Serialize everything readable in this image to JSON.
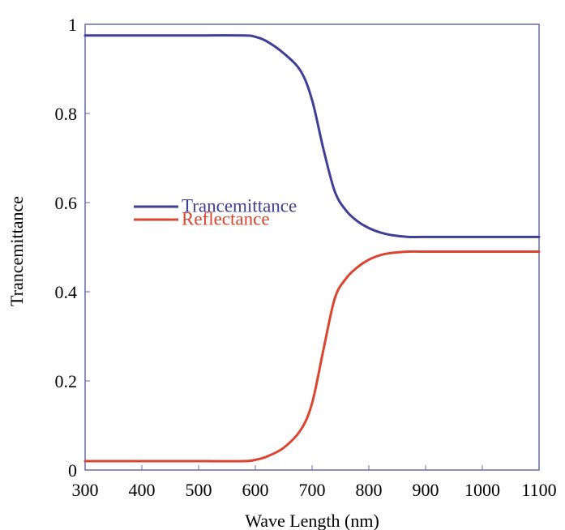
{
  "chart_data": {
    "type": "line",
    "title": "",
    "xlabel": "Wave Length (nm)",
    "ylabel": "Trancemittance",
    "xlim": [
      300,
      1100
    ],
    "ylim": [
      0,
      1
    ],
    "grid": false,
    "legend_position": "center-left",
    "x_ticks": [
      "300",
      "400",
      "500",
      "600",
      "700",
      "800",
      "900",
      "1000",
      "1100"
    ],
    "y_ticks": [
      "0",
      "0.2",
      "0.4",
      "0.6",
      "0.8",
      "1"
    ],
    "series": [
      {
        "name": "Trancemittance",
        "color": "#3f3f97",
        "x": [
          300,
          400,
          500,
          580,
          600,
          620,
          650,
          680,
          700,
          720,
          740,
          760,
          780,
          800,
          820,
          840,
          870,
          900,
          1000,
          1100
        ],
        "y": [
          0.975,
          0.975,
          0.975,
          0.975,
          0.972,
          0.962,
          0.935,
          0.895,
          0.83,
          0.72,
          0.625,
          0.582,
          0.558,
          0.543,
          0.533,
          0.527,
          0.523,
          0.523,
          0.523,
          0.523
        ]
      },
      {
        "name": "Reflectance",
        "color": "#d9452f",
        "x": [
          300,
          400,
          500,
          580,
          600,
          620,
          650,
          680,
          700,
          720,
          740,
          760,
          780,
          800,
          820,
          840,
          870,
          900,
          1000,
          1100
        ],
        "y": [
          0.02,
          0.02,
          0.02,
          0.02,
          0.023,
          0.03,
          0.05,
          0.09,
          0.15,
          0.27,
          0.385,
          0.43,
          0.455,
          0.472,
          0.482,
          0.487,
          0.49,
          0.49,
          0.49,
          0.49
        ]
      }
    ]
  }
}
